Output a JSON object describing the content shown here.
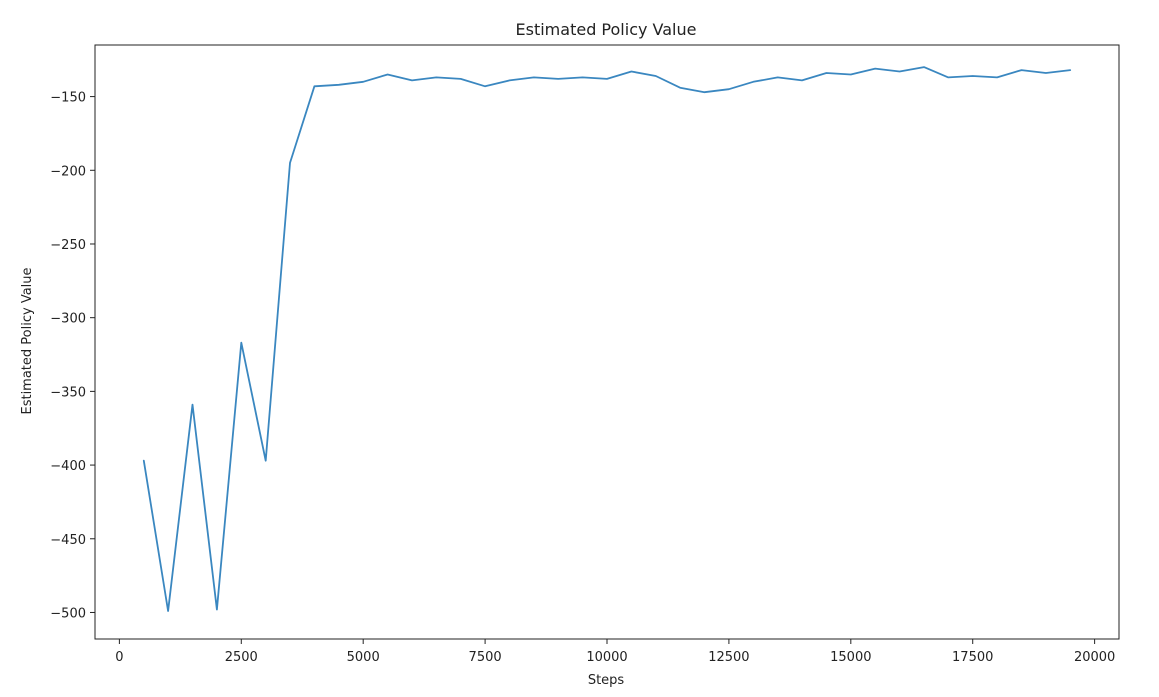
{
  "chart_data": {
    "type": "line",
    "title": "Estimated Policy Value",
    "xlabel": "Steps",
    "ylabel": "Estimated Policy Value",
    "xlim": [
      -500,
      20500
    ],
    "ylim": [
      -518,
      -115
    ],
    "xticks": [
      0,
      2500,
      5000,
      7500,
      10000,
      12500,
      15000,
      17500,
      20000
    ],
    "yticks": [
      -500,
      -450,
      -400,
      -350,
      -300,
      -250,
      -200,
      -150
    ],
    "xtick_labels": [
      "0",
      "2500",
      "5000",
      "7500",
      "10000",
      "12500",
      "15000",
      "17500",
      "20000"
    ],
    "ytick_labels": [
      "−500",
      "−450",
      "−400",
      "−350",
      "−300",
      "−250",
      "−200",
      "−150"
    ],
    "grid": false,
    "series": [
      {
        "color": "#3a87c0",
        "x": [
          500,
          1000,
          1500,
          2000,
          2500,
          3000,
          3500,
          4000,
          4500,
          5000,
          5500,
          6000,
          6500,
          7000,
          7500,
          8000,
          8500,
          9000,
          9500,
          10000,
          10500,
          11000,
          11500,
          12000,
          12500,
          13000,
          13500,
          14000,
          14500,
          15000,
          15500,
          16000,
          16500,
          17000,
          17500,
          18000,
          18500,
          19000,
          19500
        ],
        "y": [
          -397,
          -499,
          -359,
          -498,
          -317,
          -397,
          -195,
          -143,
          -142,
          -140,
          -135,
          -139,
          -137,
          -138,
          -143,
          -139,
          -137,
          -138,
          -137,
          -138,
          -133,
          -136,
          -144,
          -147,
          -145,
          -140,
          -137,
          -139,
          -134,
          -135,
          -131,
          -133,
          -130,
          -137,
          -136,
          -137,
          -132,
          -134,
          -132
        ]
      }
    ]
  }
}
